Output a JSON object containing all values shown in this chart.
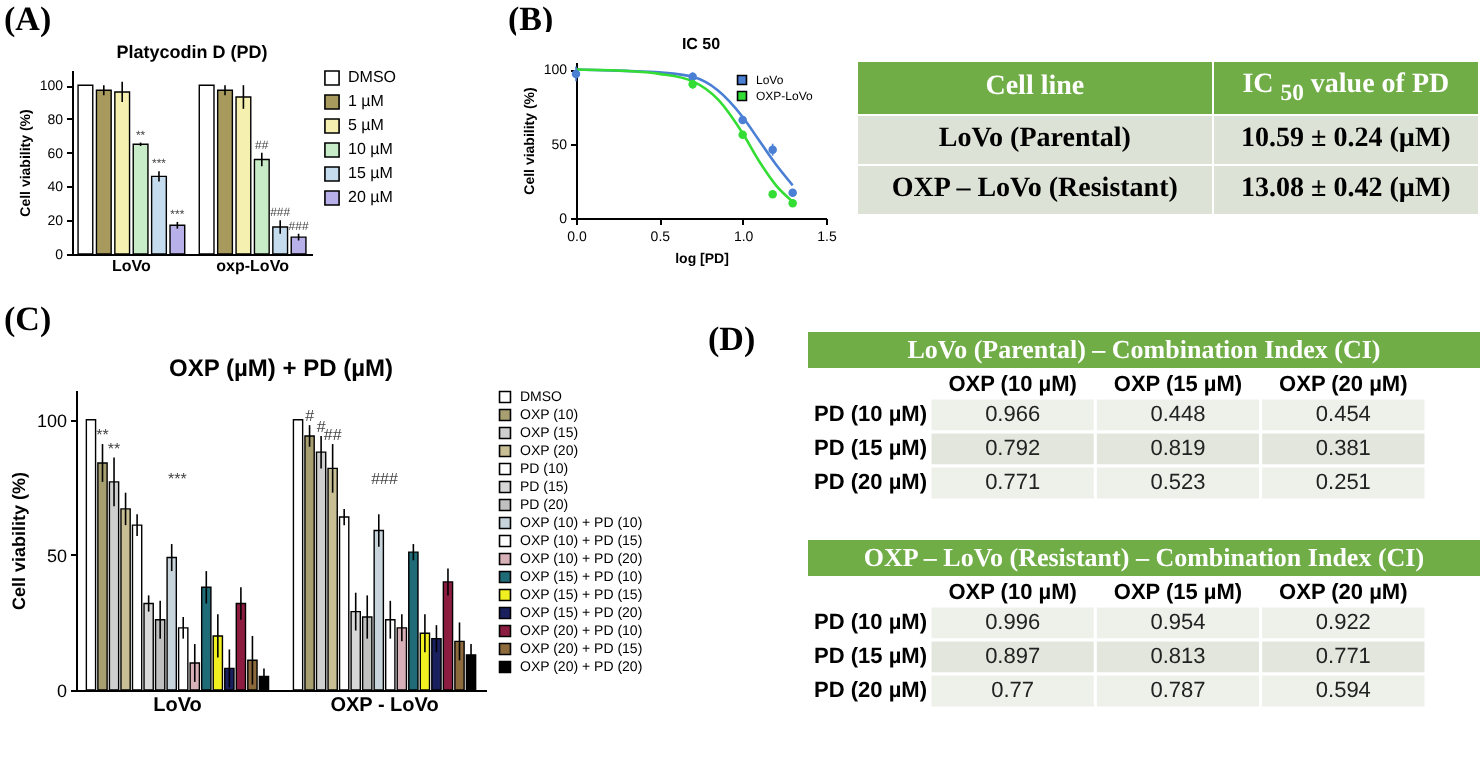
{
  "chart_data": [
    {
      "type": "bar",
      "title": "Platycodin D (PD)",
      "ylabel": "Cell viability (%)",
      "annotations": [
        "(A)"
      ],
      "categories": [
        "LoVo",
        "oxp-LoVo"
      ],
      "ylim": [
        0,
        109
      ],
      "yticks": [
        0,
        20,
        40,
        60,
        80,
        100
      ],
      "legend": "right",
      "series": [
        {
          "name": "DMSO",
          "color": "#ffffff",
          "values": [
            100,
            100
          ]
        },
        {
          "name": "1 µM",
          "color": "#a89a5c",
          "values": [
            97,
            97
          ],
          "errors": [
            3,
            3
          ]
        },
        {
          "name": "5 µM",
          "color": "#f5f0b0",
          "values": [
            96,
            93
          ],
          "errors": [
            6,
            7
          ]
        },
        {
          "name": "10 µM",
          "color": "#c8ecc8",
          "values": [
            65,
            56
          ],
          "errors": [
            1,
            4
          ],
          "value_labels": [
            "**",
            "##"
          ]
        },
        {
          "name": "15 µM",
          "color": "#c4dcee",
          "values": [
            46,
            16
          ],
          "errors": [
            3,
            4
          ],
          "value_labels": [
            "***",
            "###"
          ]
        },
        {
          "name": "20 µM",
          "color": "#b8b0e8",
          "values": [
            17,
            10
          ],
          "errors": [
            2,
            2
          ],
          "value_labels": [
            "***",
            "###"
          ]
        }
      ]
    },
    {
      "type": "scatter",
      "title": "IC 50",
      "xlabel": "log [PD]",
      "ylabel": "Cell viability (%)",
      "annotations": [
        "(B)"
      ],
      "x": [
        0,
        0.7,
        1.0,
        1.18,
        1.3
      ],
      "xlim": [
        0,
        1.5
      ],
      "xticks": [
        {
          "value": 0,
          "label": "0.0"
        },
        {
          "value": 0.5,
          "label": "0.5"
        },
        {
          "value": 1,
          "label": "1.0"
        },
        {
          "value": 1.5,
          "label": "1.5"
        }
      ],
      "ylim": [
        0,
        105
      ],
      "yticks": [
        0,
        50,
        100
      ],
      "legend": "top right",
      "series": [
        {
          "type": "line",
          "color": "#4a7fd4",
          "x": [
            0,
            0.3,
            0.5,
            0.7,
            0.85,
            1.0,
            1.1,
            1.2,
            1.3
          ],
          "values": [
            100,
            99,
            98,
            95,
            86,
            68,
            52,
            36,
            22
          ]
        },
        {
          "type": "line",
          "color": "#33dd33",
          "x": [
            0,
            0.3,
            0.5,
            0.7,
            0.85,
            1.0,
            1.1,
            1.2,
            1.3
          ],
          "values": [
            100,
            99,
            97,
            92,
            80,
            57,
            38,
            22,
            11
          ]
        },
        {
          "name": "LoVo",
          "color": "#4a7fd4",
          "values": [
            97,
            95,
            66,
            46,
            17
          ],
          "errors": [
            5,
            3,
            2,
            4,
            2
          ]
        },
        {
          "name": "OXP-LoVo",
          "color": "#33dd33",
          "values": [
            null,
            90,
            56,
            16,
            10
          ],
          "errors": [
            null,
            3,
            2,
            2,
            1
          ]
        }
      ]
    },
    {
      "type": "other",
      "ylabel": "Cell line",
      "categories": [
        "IC $_{50}$ value of PD"
      ],
      "y_categories": [
        "LoVo (Parental)",
        "OXP – LoVo (Resistant)"
      ],
      "cell_labels": [
        [
          "10.59 ± 0.24 (µM)"
        ],
        [
          "13.08 ± 0.42 (µM)"
        ]
      ]
    },
    {
      "type": "bar",
      "title": "OXP (µM) + PD (µM)",
      "ylabel": "Cell viability (%)",
      "categories": [
        "LoVo",
        "OXP - LoVo"
      ],
      "ylim": [
        0,
        111
      ],
      "yticks": [
        0,
        50,
        100
      ],
      "legend": "right",
      "annotations": [
        "(C)",
        "***",
        "###"
      ],
      "series": [
        {
          "name": "DMSO",
          "color": "#ffffff",
          "values": [
            100,
            100
          ]
        },
        {
          "name": "OXP (10)",
          "color": "#a89f70",
          "values": [
            84,
            94
          ],
          "errors": [
            7,
            4
          ],
          "value_labels": [
            "**",
            "#"
          ]
        },
        {
          "name": "OXP (15)",
          "color": "#cfcfcf",
          "values": [
            77,
            88
          ],
          "errors": [
            9,
            6
          ],
          "value_labels": [
            "**",
            "#"
          ]
        },
        {
          "name": "OXP (20)",
          "color": "#c8bf94",
          "values": [
            67,
            82
          ],
          "errors": [
            6,
            9
          ],
          "value_labels": [
            null,
            "##"
          ]
        },
        {
          "name": "PD (10)",
          "color": "#ffffff",
          "values": [
            61,
            64
          ],
          "errors": [
            4,
            3
          ]
        },
        {
          "name": "PD (15)",
          "color": "#d8d8d8",
          "values": [
            32,
            29
          ],
          "errors": [
            3,
            7
          ]
        },
        {
          "name": "PD (20)",
          "color": "#c0c0c0",
          "values": [
            26,
            27
          ],
          "errors": [
            7,
            8
          ]
        },
        {
          "name": "OXP (10) + PD (10)",
          "color": "#c8d4dc",
          "values": [
            49,
            59
          ],
          "errors": [
            5,
            6
          ]
        },
        {
          "name": "OXP (10) + PD (15)",
          "color": "#ffffff",
          "values": [
            23,
            26
          ],
          "errors": [
            4,
            7
          ]
        },
        {
          "name": "OXP (10) + PD (20)",
          "color": "#d8b0b8",
          "values": [
            10,
            23
          ],
          "errors": [
            7,
            5
          ]
        },
        {
          "name": "OXP (15) + PD (10)",
          "color": "#1f6b78",
          "values": [
            38,
            51
          ],
          "errors": [
            6,
            3
          ]
        },
        {
          "name": "OXP (15) + PD (15)",
          "color": "#f0f020",
          "values": [
            20,
            21
          ],
          "errors": [
            8,
            7
          ]
        },
        {
          "name": "OXP (15) + PD (20)",
          "color": "#1a1f5e",
          "values": [
            8,
            19
          ],
          "errors": [
            7,
            5
          ]
        },
        {
          "name": "OXP (20) + PD (10)",
          "color": "#8c1d40",
          "values": [
            32,
            40
          ],
          "errors": [
            6,
            5
          ]
        },
        {
          "name": "OXP (20) + PD (15)",
          "color": "#8c6a3c",
          "values": [
            11,
            18
          ],
          "errors": [
            9,
            7
          ]
        },
        {
          "name": "OXP (20) + PD (20)",
          "color": "#000000",
          "values": [
            5,
            13
          ],
          "errors": [
            3,
            4
          ]
        }
      ]
    },
    {
      "type": "heatmap",
      "title": "LoVo (Parental) – Combination  Index (CI)",
      "annotations": [
        "(D)"
      ],
      "data_labels": true,
      "categories": [
        "OXP (10 µM)",
        "OXP (15 µM)",
        "OXP (20 µM)"
      ],
      "y_categories": [
        "PD (10 µM)",
        "PD (15 µM)",
        "PD (20 µM)"
      ],
      "cells": [
        [
          0.966,
          0.448,
          0.454
        ],
        [
          0.792,
          0.819,
          0.381
        ],
        [
          0.771,
          0.523,
          0.251
        ]
      ]
    },
    {
      "type": "heatmap",
      "title": "OXP – LoVo (Resistant) – Combination  Index (CI)",
      "data_labels": true,
      "categories": [
        "OXP (10 µM)",
        "OXP (15 µM)",
        "OXP (20 µM)"
      ],
      "y_categories": [
        "PD (10 µM)",
        "PD (15 µM)",
        "PD (20 µM)"
      ],
      "cells": [
        [
          0.996,
          0.954,
          0.922
        ],
        [
          0.897,
          0.813,
          0.771
        ],
        [
          0.77,
          0.787,
          0.594
        ]
      ]
    }
  ]
}
